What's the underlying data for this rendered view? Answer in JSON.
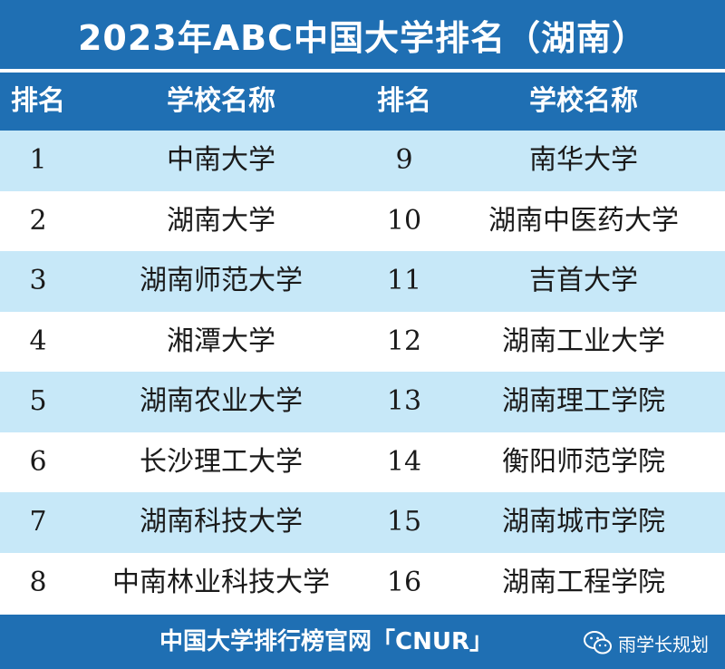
{
  "title": "2023年ABC中国大学排名（湖南）",
  "headers": {
    "rank1": "排名",
    "name1": "学校名称",
    "rank2": "排名",
    "name2": "学校名称"
  },
  "rows": [
    {
      "rank_left": "1",
      "name_left": "中南大学",
      "rank_right": "9",
      "name_right": "南华大学"
    },
    {
      "rank_left": "2",
      "name_left": "湖南大学",
      "rank_right": "10",
      "name_right": "湖南中医药大学"
    },
    {
      "rank_left": "3",
      "name_left": "湖南师范大学",
      "rank_right": "11",
      "name_right": "吉首大学"
    },
    {
      "rank_left": "4",
      "name_left": "湘潭大学",
      "rank_right": "12",
      "name_right": "湖南工业大学"
    },
    {
      "rank_left": "5",
      "name_left": "湖南农业大学",
      "rank_right": "13",
      "name_right": "湖南理工学院"
    },
    {
      "rank_left": "6",
      "name_left": "长沙理工大学",
      "rank_right": "14",
      "name_right": "衡阳师范学院"
    },
    {
      "rank_left": "7",
      "name_left": "湖南科技大学",
      "rank_right": "15",
      "name_right": "湖南城市学院"
    },
    {
      "rank_left": "8",
      "name_left": "中南林业科技大学",
      "rank_right": "16",
      "name_right": "湖南工程学院"
    }
  ],
  "footer": "中国大学排行榜官网「CNUR」",
  "watermark": {
    "icon": "wechat-icon",
    "text": "雨学长规划"
  },
  "colors": {
    "header_blue": "#1f6fb3",
    "row_light_blue": "#c7e8f8",
    "row_white": "#ffffff"
  }
}
